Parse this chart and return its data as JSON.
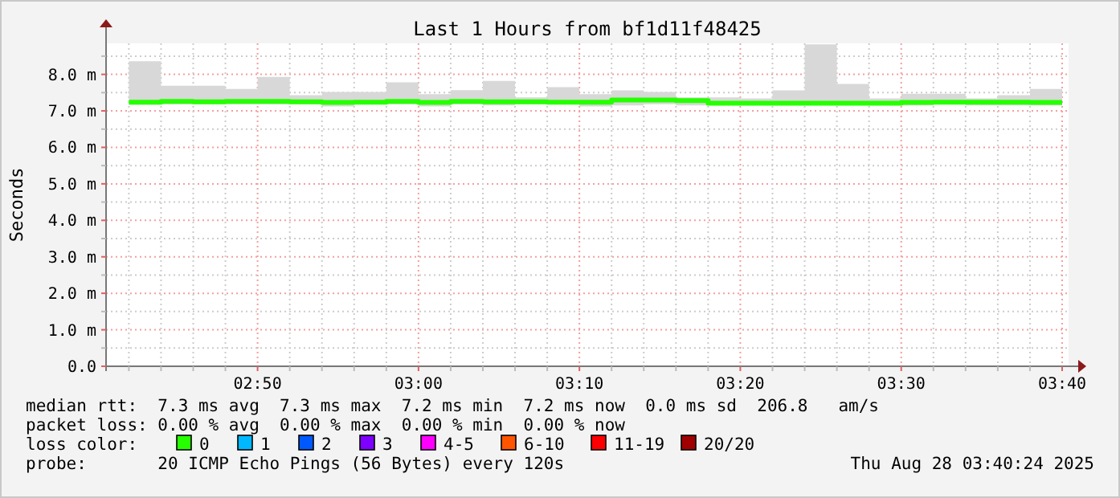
{
  "chart_data": {
    "type": "step",
    "title": "Last 1 Hours from bf1d11f48425",
    "ylabel": "Seconds",
    "x": [
      "2025-08-28T02:42",
      "2025-08-28T02:44",
      "2025-08-28T02:46",
      "2025-08-28T02:48",
      "2025-08-28T02:50",
      "2025-08-28T02:52",
      "2025-08-28T02:54",
      "2025-08-28T02:56",
      "2025-08-28T02:58",
      "2025-08-28T03:00",
      "2025-08-28T03:02",
      "2025-08-28T03:04",
      "2025-08-28T03:06",
      "2025-08-28T03:08",
      "2025-08-28T03:10",
      "2025-08-28T03:12",
      "2025-08-28T03:14",
      "2025-08-28T03:16",
      "2025-08-28T03:18",
      "2025-08-28T03:20",
      "2025-08-28T03:22",
      "2025-08-28T03:24",
      "2025-08-28T03:26",
      "2025-08-28T03:28",
      "2025-08-28T03:30",
      "2025-08-28T03:32",
      "2025-08-28T03:34",
      "2025-08-28T03:36",
      "2025-08-28T03:38",
      "2025-08-28T03:40"
    ],
    "series": [
      {
        "color": "#26ff00",
        "values": [
          7.24,
          7.26,
          7.25,
          7.26,
          7.26,
          7.25,
          7.23,
          7.24,
          7.26,
          7.23,
          7.26,
          7.25,
          7.25,
          7.24,
          7.24,
          7.3,
          7.3,
          7.28,
          7.21,
          7.21,
          7.21,
          7.21,
          7.21,
          7.21,
          7.23,
          7.24,
          7.24,
          7.24,
          7.23,
          7.23
        ],
        "lower": [
          7.17,
          7.18,
          7.18,
          7.18,
          7.18,
          7.18,
          7.12,
          7.18,
          7.18,
          7.12,
          7.18,
          7.15,
          7.18,
          7.18,
          7.12,
          7.15,
          7.18,
          7.15,
          7.18,
          7.18,
          7.18,
          7.18,
          7.18,
          7.18,
          7.15,
          7.18,
          7.15,
          7.15,
          7.15,
          7.15
        ],
        "upper": [
          8.36,
          7.69,
          7.69,
          7.6,
          7.93,
          7.43,
          7.52,
          7.52,
          7.78,
          7.46,
          7.57,
          7.82,
          7.37,
          7.65,
          7.46,
          7.56,
          7.52,
          7.37,
          7.37,
          7.34,
          7.56,
          8.82,
          7.74,
          7.34,
          7.47,
          7.47,
          7.34,
          7.43,
          7.6,
          7.6
        ]
      }
    ],
    "xlim": [
      "2025-08-28T02:40:35",
      "2025-08-28T03:40:24"
    ],
    "xticks": [
      {
        "value": "2025-08-28T02:42",
        "label": null
      },
      {
        "value": "2025-08-28T02:44",
        "label": null
      },
      {
        "value": "2025-08-28T02:46",
        "label": null
      },
      {
        "value": "2025-08-28T02:48",
        "label": null
      },
      {
        "value": "2025-08-28T02:50",
        "label": "02:50"
      },
      {
        "value": "2025-08-28T02:52",
        "label": null
      },
      {
        "value": "2025-08-28T02:54",
        "label": null
      },
      {
        "value": "2025-08-28T02:56",
        "label": null
      },
      {
        "value": "2025-08-28T02:58",
        "label": null
      },
      {
        "value": "2025-08-28T03:00",
        "label": "03:00"
      },
      {
        "value": "2025-08-28T03:02",
        "label": null
      },
      {
        "value": "2025-08-28T03:04",
        "label": null
      },
      {
        "value": "2025-08-28T03:06",
        "label": null
      },
      {
        "value": "2025-08-28T03:08",
        "label": null
      },
      {
        "value": "2025-08-28T03:10",
        "label": "03:10"
      },
      {
        "value": "2025-08-28T03:12",
        "label": null
      },
      {
        "value": "2025-08-28T03:14",
        "label": null
      },
      {
        "value": "2025-08-28T03:16",
        "label": null
      },
      {
        "value": "2025-08-28T03:18",
        "label": null
      },
      {
        "value": "2025-08-28T03:20",
        "label": "03:20"
      },
      {
        "value": "2025-08-28T03:22",
        "label": null
      },
      {
        "value": "2025-08-28T03:24",
        "label": null
      },
      {
        "value": "2025-08-28T03:26",
        "label": null
      },
      {
        "value": "2025-08-28T03:28",
        "label": null
      },
      {
        "value": "2025-08-28T03:30",
        "label": "03:30"
      },
      {
        "value": "2025-08-28T03:32",
        "label": null
      },
      {
        "value": "2025-08-28T03:34",
        "label": null
      },
      {
        "value": "2025-08-28T03:36",
        "label": null
      },
      {
        "value": "2025-08-28T03:38",
        "label": null
      },
      {
        "value": "2025-08-28T03:40",
        "label": "03:40"
      }
    ],
    "ylim": [
      0,
      8.85
    ],
    "yticks": [
      {
        "value": 0,
        "label": "0.0"
      },
      {
        "value": 0.5,
        "label": null
      },
      {
        "value": 1,
        "label": "1.0 m"
      },
      {
        "value": 1.5,
        "label": null
      },
      {
        "value": 2,
        "label": "2.0 m"
      },
      {
        "value": 2.5,
        "label": null
      },
      {
        "value": 3,
        "label": "3.0 m"
      },
      {
        "value": 3.5,
        "label": null
      },
      {
        "value": 4,
        "label": "4.0 m"
      },
      {
        "value": 4.5,
        "label": null
      },
      {
        "value": 5,
        "label": "5.0 m"
      },
      {
        "value": 5.5,
        "label": null
      },
      {
        "value": 6,
        "label": "6.0 m"
      },
      {
        "value": 6.5,
        "label": null
      },
      {
        "value": 7,
        "label": "7.0 m"
      },
      {
        "value": 7.5,
        "label": null
      },
      {
        "value": 8,
        "label": "8.0 m"
      },
      {
        "value": 8.5,
        "label": null
      }
    ],
    "grid": true,
    "annotations": [
      "median rtt:  7.3 ms avg  7.3 ms max  7.2 ms min  7.2 ms now  0.0 ms sd  206.8   am/s",
      "packet loss: 0.00 % avg  0.00 % max  0.00 % min  0.00 % now",
      "loss color:",
      "0",
      "1",
      "2",
      "3",
      "4-5",
      "6-10",
      "11-19",
      "20/20",
      "probe:       20 ICMP Echo Pings (56 Bytes) every 120s",
      "Thu Aug 28 03:40:24 2025"
    ]
  }
}
